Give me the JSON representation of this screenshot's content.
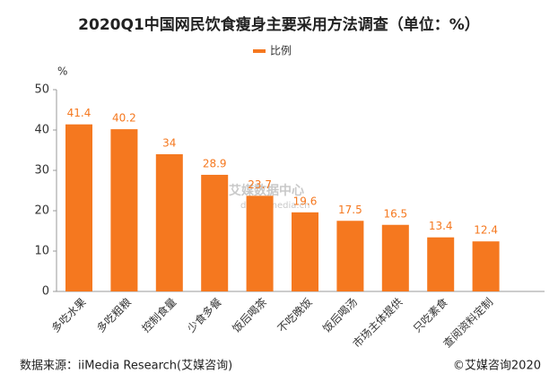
{
  "chart_data": {
    "type": "bar",
    "title": "2020Q1中国网民饮食瘦身主要采用方法调查（单位：%）",
    "y_label": "%",
    "categories": [
      "多吃水果",
      "多吃粗粮",
      "控制食量",
      "少食多餐",
      "饭后喝茶",
      "不吃晚饭",
      "饭后喝汤",
      "市场主体提供",
      "只吃素食",
      "查阅资料定制"
    ],
    "series": [
      {
        "name": "比例",
        "color": "#f5781f",
        "values": [
          41.4,
          40.2,
          34,
          28.9,
          23.7,
          19.6,
          17.5,
          16.5,
          13.4,
          12.4
        ]
      }
    ],
    "ylim": [
      0,
      50
    ],
    "yticks": [
      0,
      10,
      20,
      30,
      40,
      50
    ],
    "grid": false,
    "legend": "top",
    "watermark": [
      "艾媒数据中心",
      "data.iimedia.cn"
    ],
    "source": "数据来源：iiMedia Research(艾媒咨询)",
    "copyright": "©艾媒咨询2020"
  }
}
